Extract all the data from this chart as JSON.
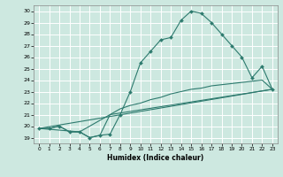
{
  "xlabel": "Humidex (Indice chaleur)",
  "bg_color": "#cde8e0",
  "line_color": "#2d7a6e",
  "grid_color": "#ffffff",
  "xlim": [
    -0.5,
    23.5
  ],
  "ylim": [
    18.5,
    30.5
  ],
  "xticks": [
    0,
    1,
    2,
    3,
    4,
    5,
    6,
    7,
    8,
    9,
    10,
    11,
    12,
    13,
    14,
    15,
    16,
    17,
    18,
    19,
    20,
    21,
    22,
    23
  ],
  "yticks": [
    19,
    20,
    21,
    22,
    23,
    24,
    25,
    26,
    27,
    28,
    29,
    30
  ],
  "line1_x": [
    0,
    1,
    2,
    3,
    4,
    5,
    6,
    7,
    8,
    9,
    10,
    11,
    12,
    13,
    14,
    15,
    16,
    17,
    18,
    19,
    20,
    21,
    22,
    23
  ],
  "line1_y": [
    19.8,
    19.8,
    20.0,
    19.5,
    19.5,
    19.0,
    19.2,
    19.3,
    21.0,
    23.0,
    25.5,
    26.5,
    27.5,
    27.7,
    29.2,
    30.0,
    29.8,
    29.0,
    28.0,
    27.0,
    26.0,
    24.2,
    25.2,
    23.2
  ],
  "line2_x": [
    0,
    23
  ],
  "line2_y": [
    19.8,
    23.2
  ],
  "line3_x": [
    0,
    4,
    7,
    23
  ],
  "line3_y": [
    19.8,
    19.5,
    21.0,
    23.2
  ],
  "line4_x": [
    0,
    1,
    2,
    3,
    4,
    5,
    6,
    7,
    8,
    9,
    10,
    11,
    12,
    13,
    14,
    15,
    16,
    17,
    18,
    19,
    20,
    21,
    22,
    23
  ],
  "line4_y": [
    19.8,
    19.8,
    20.0,
    19.5,
    19.5,
    19.0,
    19.2,
    21.0,
    21.5,
    21.8,
    22.0,
    22.3,
    22.5,
    22.8,
    23.0,
    23.2,
    23.3,
    23.5,
    23.6,
    23.7,
    23.8,
    23.9,
    24.0,
    23.2
  ]
}
